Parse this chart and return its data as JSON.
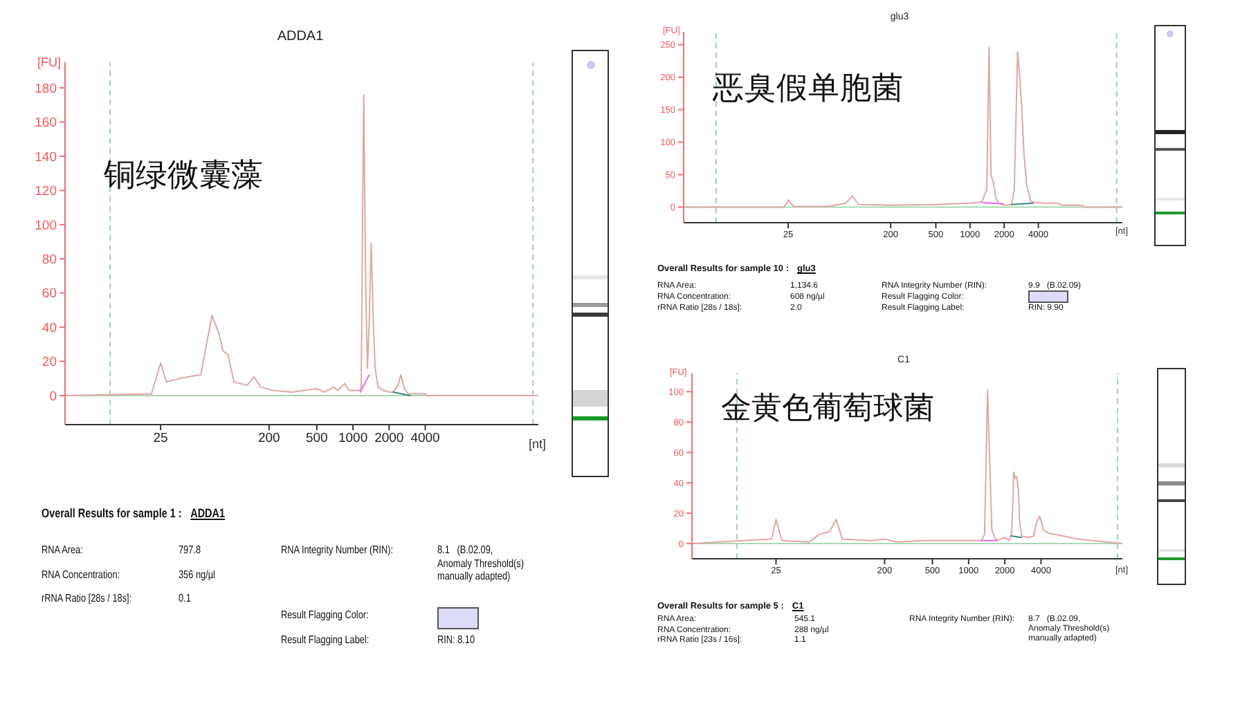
{
  "chart_data": [
    {
      "type": "line",
      "title": "ADDA1",
      "xlabel": "[nt]",
      "ylabel": "[FU]",
      "log": "x",
      "xlim": [
        4,
        35000
      ],
      "xticks": [
        25,
        200,
        500,
        1000,
        2000,
        4000
      ],
      "ylim": [
        -17,
        195
      ],
      "yticks": [
        0,
        20,
        40,
        60,
        80,
        100,
        120,
        140,
        160,
        180
      ],
      "series": [
        {
          "color": "#e4a5a5",
          "x": [
            4,
            21,
            25,
            28,
            36,
            52,
            54,
            67,
            76,
            83,
            91,
            102,
            132,
            150,
            171,
            215,
            309,
            500,
            579,
            690,
            747,
            852,
            930,
            1147,
            1171,
            1229,
            1280,
            1320,
            1362,
            1419,
            1479,
            1530,
            1617,
            1792,
            2000,
            2155,
            2374,
            2507,
            2676,
            2898,
            4000,
            4110,
            35000
          ],
          "values": [
            0,
            1,
            19,
            8,
            10,
            12,
            12,
            47,
            37,
            26,
            24,
            8,
            6,
            11,
            5,
            3,
            2,
            4,
            2,
            5,
            3,
            7,
            3,
            3,
            5,
            176,
            60,
            16,
            40,
            89,
            42,
            16,
            5,
            3,
            2,
            2,
            6,
            12,
            4,
            1,
            1,
            0,
            0
          ]
        },
        {
          "color": "#ee66ee",
          "x": [
            1150,
            1362
          ],
          "values": [
            2,
            12
          ]
        },
        {
          "color": "#3a8a80",
          "x": [
            2155,
            3000
          ],
          "values": [
            2,
            0
          ]
        }
      ],
      "ref_lines": [
        {
          "axis": "y",
          "value": 0,
          "color": "#a9d9b1"
        },
        {
          "axis": "x",
          "value": 9.5,
          "color": "#9fd0a5",
          "line_style": "dashed"
        },
        {
          "axis": "x",
          "value": 31600,
          "color": "#9fd0a5",
          "line_style": "dashed"
        }
      ],
      "annotations": [
        "铜绿微囊藻",
        "Overall Results for sample 1 :",
        "ADDA1",
        "RNA Area:",
        "797.8",
        "RNA Concentration:",
        "356 ng/µl",
        "rRNA Ratio [28s / 18s]:",
        "0.1",
        "RNA Integrity Number (RIN):",
        "8.1   (B.02.09, Anomaly Threshold(s) manually adapted)",
        "Result Flagging Color:",
        "Result Flagging Label:",
        "RIN: 8.10"
      ]
    },
    {
      "type": "line",
      "title": "glu3",
      "xlabel": "[nt]",
      "ylabel": "[FU]",
      "log": "x",
      "xlim": [
        3,
        22000
      ],
      "xticks": [
        25,
        200,
        500,
        1000,
        2000,
        4000
      ],
      "ylim": [
        -24,
        270
      ],
      "yticks": [
        0,
        50,
        100,
        150,
        200,
        250
      ],
      "series": [
        {
          "color": "#e4a5a5",
          "x": [
            3,
            23,
            25,
            28,
            57,
            80,
            92,
            104,
            195,
            500,
            1000,
            1271,
            1404,
            1472,
            1532,
            1605,
            1694,
            1774,
            2000,
            2323,
            2455,
            2624,
            2743,
            2868,
            2982,
            3151,
            3424,
            3830,
            4518,
            5962,
            6311,
            9795,
            10070,
            22000
          ],
          "values": [
            0,
            0,
            11,
            1,
            1,
            6,
            17,
            4,
            3,
            4,
            6,
            8,
            27,
            246,
            49,
            38,
            13,
            6,
            3,
            4,
            27,
            239,
            200,
            149,
            85,
            35,
            9,
            7,
            6,
            6,
            3,
            3,
            0,
            0
          ]
        },
        {
          "color": "#ee66ee",
          "x": [
            1290,
            1960
          ],
          "values": [
            7,
            5
          ]
        },
        {
          "color": "#3a8a80",
          "x": [
            2323,
            3600
          ],
          "values": [
            4,
            6
          ]
        }
      ],
      "ref_lines": [
        {
          "axis": "y",
          "value": 0,
          "color": "#a9d9b1"
        },
        {
          "axis": "x",
          "value": 5.8,
          "color": "#9fd0a5",
          "line_style": "dashed"
        },
        {
          "axis": "x",
          "value": 19600,
          "color": "#9fd0a5",
          "line_style": "dashed"
        }
      ],
      "annotations": [
        "恶臭假单胞菌",
        "Overall Results for sample 10 :",
        "glu3",
        "RNA Area:",
        "1,134.6",
        "RNA Concentration:",
        "608 ng/µl",
        "rRNA Ratio [28s / 18s]:",
        "2.0",
        "RNA Integrity Number (RIN):",
        "9.9   (B.02.09)",
        "Result Flagging Color:",
        "Result Flagging Label:",
        "RIN: 9.90"
      ]
    },
    {
      "type": "line",
      "title": "C1",
      "xlabel": "[nt]",
      "ylabel": "[FU]",
      "log": "x",
      "xlim": [
        5,
        19000
      ],
      "xticks": [
        25,
        200,
        500,
        1000,
        2000,
        4000
      ],
      "ylim": [
        -10,
        112
      ],
      "yticks": [
        0,
        20,
        40,
        60,
        80,
        100
      ],
      "series": [
        {
          "color": "#e4a5a5",
          "x": [
            5,
            23,
            25,
            28,
            47,
            57,
            70,
            79,
            89,
            155,
            200,
            250,
            422,
            617,
            1000,
            1274,
            1357,
            1437,
            1502,
            1560,
            1695,
            2000,
            2184,
            2288,
            2376,
            2443,
            2512,
            2595,
            2655,
            2757,
            3170,
            3478,
            3680,
            3908,
            4190,
            4599,
            6082,
            8044,
            10640,
            14070,
            19000
          ],
          "values": [
            0,
            3,
            16,
            2,
            1,
            6,
            8,
            16,
            3,
            2,
            3,
            1,
            2,
            2,
            2,
            2,
            6,
            101,
            50,
            9,
            2,
            4,
            2,
            8,
            47,
            43,
            44,
            35,
            14,
            5,
            4,
            5,
            14,
            18,
            9,
            7,
            5,
            3,
            2,
            1,
            0
          ]
        },
        {
          "color": "#ee66ee",
          "x": [
            1274,
            1720
          ],
          "values": [
            2,
            2
          ]
        },
        {
          "color": "#3a8a80",
          "x": [
            2267,
            2757
          ],
          "values": [
            5,
            4
          ]
        }
      ],
      "ref_lines": [
        {
          "axis": "y",
          "value": 0,
          "color": "#a9d9b1"
        },
        {
          "axis": "x",
          "value": 11.8,
          "color": "#9fd0a5",
          "line_style": "dashed"
        },
        {
          "axis": "x",
          "value": 17300,
          "color": "#9fd0a5",
          "line_style": "dashed"
        }
      ],
      "annotations": [
        "金黄色葡萄球菌",
        "Overall Results for sample 5 :",
        "C1",
        "RNA Area:",
        "545.1",
        "RNA Concentration:",
        "288 ng/µl",
        "rRNA Ratio [23s / 16s]:",
        "1.1",
        "RNA Integrity Number (RIN):",
        "8.7   (B.02.09, Anomaly Threshold(s) manually adapted)"
      ]
    }
  ]
}
